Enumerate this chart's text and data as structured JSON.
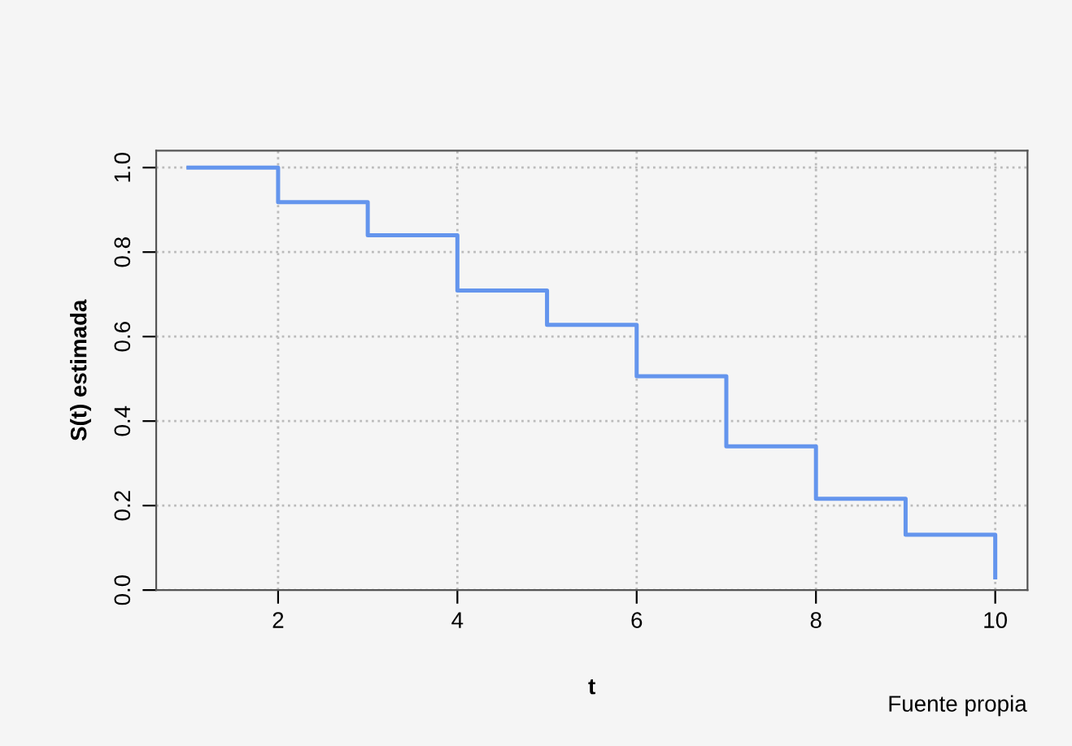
{
  "chart_data": {
    "type": "step",
    "xlabel": "t",
    "ylabel": "S(t) estimada",
    "x": [
      1,
      2,
      3,
      4,
      5,
      6,
      7,
      8,
      9,
      10
    ],
    "series": [
      {
        "color": "#6495ed",
        "values": [
          1.0,
          0.918,
          0.84,
          0.709,
          0.628,
          0.506,
          0.34,
          0.216,
          0.131,
          0.03
        ]
      }
    ],
    "xlim": [
      0.64,
      10.36
    ],
    "ylim": [
      0,
      1.04
    ],
    "xticks": [
      2,
      4,
      6,
      8,
      10
    ],
    "yticks": [
      {
        "value": 0,
        "label": "0.0"
      },
      0.2,
      0.4,
      0.6,
      0.8,
      {
        "value": 1,
        "label": "1.0"
      }
    ],
    "grid": true,
    "line_style": "solid",
    "marker": "none",
    "annotations": [
      "Fuente propia"
    ]
  }
}
